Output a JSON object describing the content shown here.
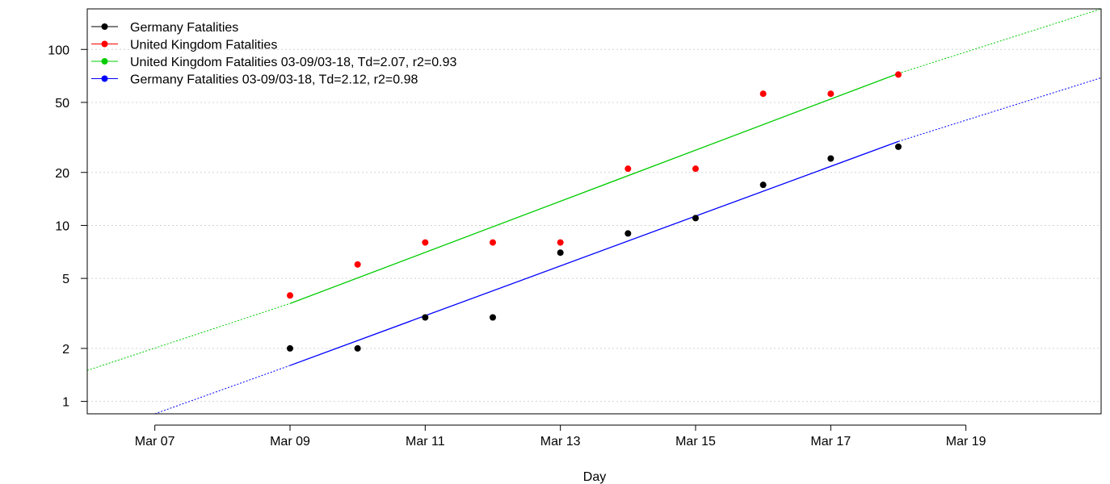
{
  "chart_data": {
    "type": "scatter",
    "title": "",
    "xlabel": "Day",
    "ylabel": "",
    "y_scale": "log",
    "grid": "horizontal dotted",
    "legend_position": "top-left",
    "xlim": [
      "2020-03-06",
      "2020-03-21"
    ],
    "ylim": [
      0.85,
      170
    ],
    "x_ticks": [
      "Mar 07",
      "Mar 09",
      "Mar 11",
      "Mar 13",
      "Mar 15",
      "Mar 17",
      "Mar 19"
    ],
    "x_tick_dates": [
      "2020-03-07",
      "2020-03-09",
      "2020-03-11",
      "2020-03-13",
      "2020-03-15",
      "2020-03-17",
      "2020-03-19"
    ],
    "y_ticks": [
      1,
      2,
      5,
      10,
      20,
      50,
      100
    ],
    "y_tick_labels": [
      "1",
      "2",
      "5",
      "10",
      "20",
      "50",
      "100"
    ],
    "series": [
      {
        "name": "Germany Fatalities",
        "kind": "points",
        "color": "#000000",
        "x": [
          "2020-03-09",
          "2020-03-10",
          "2020-03-11",
          "2020-03-12",
          "2020-03-13",
          "2020-03-14",
          "2020-03-15",
          "2020-03-16",
          "2020-03-17",
          "2020-03-18"
        ],
        "y": [
          2,
          2,
          3,
          3,
          7,
          9,
          11,
          17,
          24,
          28
        ]
      },
      {
        "name": "United Kingdom Fatalities",
        "kind": "points",
        "color": "#ff0000",
        "x": [
          "2020-03-09",
          "2020-03-10",
          "2020-03-11",
          "2020-03-12",
          "2020-03-13",
          "2020-03-14",
          "2020-03-15",
          "2020-03-16",
          "2020-03-17",
          "2020-03-18"
        ],
        "y": [
          4,
          6,
          8,
          8,
          8,
          21,
          21,
          56,
          56,
          72
        ]
      },
      {
        "name": "United Kingdom Fatalities 03-09/03-18, Td=2.07, r2=0.93",
        "kind": "fit",
        "color": "#00cc00",
        "fit_range": [
          "2020-03-09",
          "2020-03-18"
        ],
        "x": [
          "2020-03-06",
          "2020-03-09",
          "2020-03-18",
          "2020-03-21"
        ],
        "y": [
          1.5,
          3.6,
          73,
          170
        ]
      },
      {
        "name": "Germany Fatalities 03-09/03-18, Td=2.12, r2=0.98",
        "kind": "fit",
        "color": "#0000ff",
        "fit_range": [
          "2020-03-09",
          "2020-03-18"
        ],
        "x": [
          "2020-03-07",
          "2020-03-09",
          "2020-03-18",
          "2020-03-21"
        ],
        "y": [
          0.85,
          1.6,
          30,
          69
        ]
      }
    ]
  }
}
